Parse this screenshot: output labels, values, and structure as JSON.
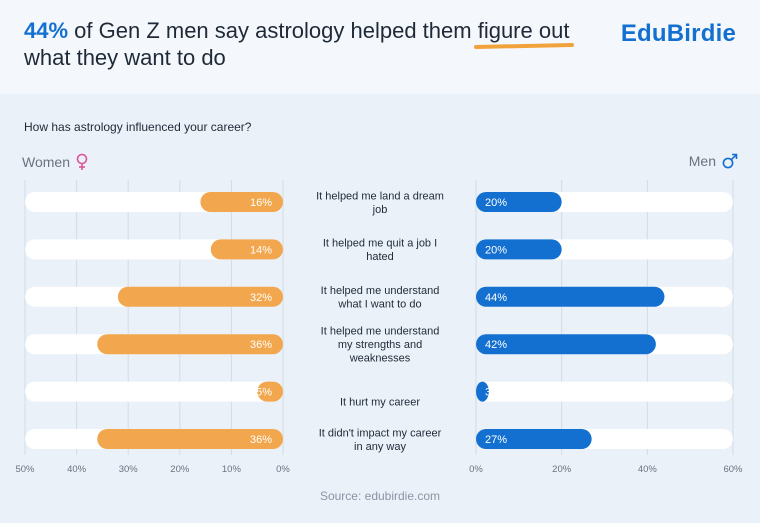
{
  "header": {
    "headline_pct": "44%",
    "headline_mid": " of Gen Z men say astrology helped them ",
    "headline_underlined": "figure out",
    "headline_end": " what they want to do",
    "logo": "EduBirdie"
  },
  "legend": {
    "women": "Women",
    "men": "Men"
  },
  "source": "Source: edubirdie.com",
  "colors": {
    "women": "#f2a64d",
    "men": "#1470d0",
    "track": "#ffffff",
    "grid": "#d3dbe5",
    "accent": "#1470d0",
    "women_symbol": "#e0529a",
    "men_symbol": "#1470d0"
  },
  "icons": {
    "women": "female-symbol-icon",
    "men": "male-symbol-icon"
  },
  "chart_data": {
    "type": "bar",
    "title": "How has astrology influenced your career?",
    "categories": [
      [
        "It helped me land a dream",
        "job"
      ],
      [
        "It helped me quit a job I",
        "hated"
      ],
      [
        "It helped me understand",
        "what I want to do"
      ],
      [
        "It helped me understand",
        "my strengths and",
        "weaknesses"
      ],
      [
        "It hurt my career"
      ],
      [
        "It didn't impact my career",
        "in any way"
      ]
    ],
    "series": [
      {
        "name": "Women",
        "values": [
          16,
          14,
          32,
          36,
          5,
          36
        ],
        "labels": [
          "16%",
          "14%",
          "32%",
          "36%",
          "5%",
          "36%"
        ]
      },
      {
        "name": "Men",
        "values": [
          20,
          20,
          44,
          42,
          3,
          27
        ],
        "labels": [
          "20%",
          "20%",
          "44%",
          "42%",
          "3%",
          "27%"
        ]
      }
    ],
    "women_axis": {
      "range": [
        0,
        50
      ],
      "ticks": [
        "50%",
        "40%",
        "30%",
        "20%",
        "10%",
        "0%"
      ]
    },
    "men_axis": {
      "range": [
        0,
        60
      ],
      "ticks": [
        "0%",
        "20%",
        "40%",
        "60%"
      ]
    },
    "grid": true
  }
}
